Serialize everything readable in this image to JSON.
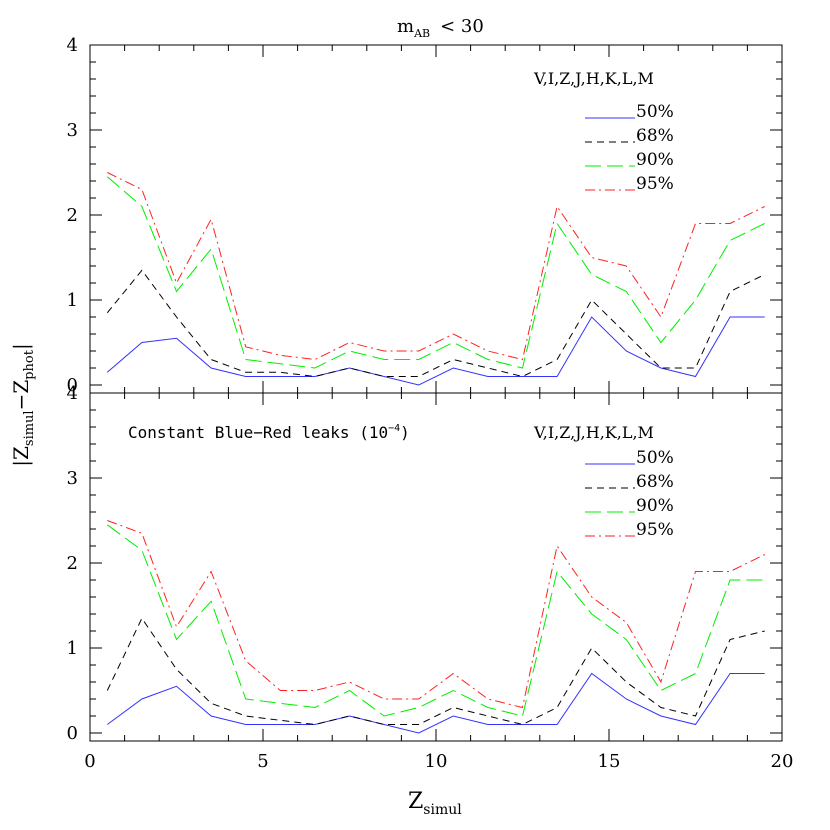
{
  "figure": {
    "ylabel_main": "|Z",
    "ylabel_sub1": "simul",
    "ylabel_mid": "−Z",
    "ylabel_sub2": "phot",
    "ylabel_end": "|",
    "xlabel_main": "Z",
    "xlabel_sub": "simul"
  },
  "chart_data": [
    {
      "type": "line",
      "title": "m_AB < 30",
      "title_main": "m",
      "title_sub": "AB",
      "title_rest": "< 30",
      "annotation": "",
      "annotation_sup": "",
      "annotation_end": "",
      "filters": "V,I,Z,J,H,K,L,M",
      "xlim": [
        0,
        20
      ],
      "ylim": [
        0,
        4
      ],
      "x_ticks": [
        "0",
        "5",
        "10",
        "15",
        "20"
      ],
      "y_ticks": [
        "0",
        "1",
        "2",
        "3",
        "4"
      ],
      "x": [
        0.5,
        1.5,
        2.5,
        3.5,
        4.5,
        5.5,
        6.5,
        7.5,
        8.5,
        9.5,
        10.5,
        11.5,
        12.5,
        13.5,
        14.5,
        15.5,
        16.5,
        17.5,
        18.5,
        19.5
      ],
      "series": [
        {
          "name": "50%",
          "color": "#3333ff",
          "dash": "solid",
          "values": [
            0.15,
            0.5,
            0.55,
            0.2,
            0.1,
            0.1,
            0.1,
            0.2,
            0.1,
            0.0,
            0.2,
            0.1,
            0.1,
            0.1,
            0.8,
            0.4,
            0.2,
            0.1,
            0.8,
            0.8
          ]
        },
        {
          "name": "68%",
          "color": "#000000",
          "dash": "short",
          "values": [
            0.85,
            1.35,
            0.8,
            0.3,
            0.15,
            0.15,
            0.1,
            0.2,
            0.1,
            0.1,
            0.3,
            0.2,
            0.1,
            0.3,
            1.0,
            0.6,
            0.2,
            0.2,
            1.1,
            1.3
          ]
        },
        {
          "name": "90%",
          "color": "#00ee00",
          "dash": "long",
          "values": [
            2.45,
            2.1,
            1.1,
            1.6,
            0.3,
            0.25,
            0.2,
            0.4,
            0.3,
            0.3,
            0.5,
            0.3,
            0.2,
            1.9,
            1.3,
            1.1,
            0.5,
            1.0,
            1.7,
            1.9
          ]
        },
        {
          "name": "95%",
          "color": "#ff2222",
          "dash": "dashdot",
          "values": [
            2.5,
            2.3,
            1.2,
            1.95,
            0.45,
            0.35,
            0.3,
            0.5,
            0.4,
            0.4,
            0.6,
            0.4,
            0.3,
            2.1,
            1.5,
            1.4,
            0.8,
            1.9,
            1.9,
            2.1
          ]
        }
      ]
    },
    {
      "type": "line",
      "title": "",
      "title_main": "",
      "title_sub": "",
      "title_rest": "",
      "annotation": "Constant Blue−Red leaks (10",
      "annotation_sup": "−4",
      "annotation_end": ")",
      "filters": "V,I,Z,J,H,K,L,M",
      "xlim": [
        0,
        20
      ],
      "ylim": [
        0,
        4
      ],
      "x_ticks": [
        "0",
        "5",
        "10",
        "15",
        "20"
      ],
      "y_ticks": [
        "0",
        "1",
        "2",
        "3",
        "4"
      ],
      "x": [
        0.5,
        1.5,
        2.5,
        3.5,
        4.5,
        5.5,
        6.5,
        7.5,
        8.5,
        9.5,
        10.5,
        11.5,
        12.5,
        13.5,
        14.5,
        15.5,
        16.5,
        17.5,
        18.5,
        19.5
      ],
      "series": [
        {
          "name": "50%",
          "color": "#3333ff",
          "dash": "solid",
          "values": [
            0.1,
            0.4,
            0.55,
            0.2,
            0.1,
            0.1,
            0.1,
            0.2,
            0.1,
            0.0,
            0.2,
            0.1,
            0.1,
            0.1,
            0.7,
            0.4,
            0.2,
            0.1,
            0.7,
            0.7
          ]
        },
        {
          "name": "68%",
          "color": "#000000",
          "dash": "short",
          "values": [
            0.5,
            1.35,
            0.75,
            0.35,
            0.2,
            0.15,
            0.1,
            0.2,
            0.1,
            0.1,
            0.3,
            0.2,
            0.1,
            0.3,
            1.0,
            0.6,
            0.3,
            0.2,
            1.1,
            1.2
          ]
        },
        {
          "name": "90%",
          "color": "#00ee00",
          "dash": "long",
          "values": [
            2.45,
            2.15,
            1.1,
            1.55,
            0.4,
            0.35,
            0.3,
            0.5,
            0.2,
            0.3,
            0.5,
            0.3,
            0.2,
            1.9,
            1.4,
            1.1,
            0.5,
            0.7,
            1.8,
            1.8
          ]
        },
        {
          "name": "95%",
          "color": "#ff2222",
          "dash": "dashdot",
          "values": [
            2.5,
            2.35,
            1.25,
            1.9,
            0.85,
            0.5,
            0.5,
            0.6,
            0.4,
            0.4,
            0.7,
            0.4,
            0.3,
            2.2,
            1.6,
            1.3,
            0.6,
            1.9,
            1.9,
            2.1
          ]
        }
      ]
    }
  ]
}
